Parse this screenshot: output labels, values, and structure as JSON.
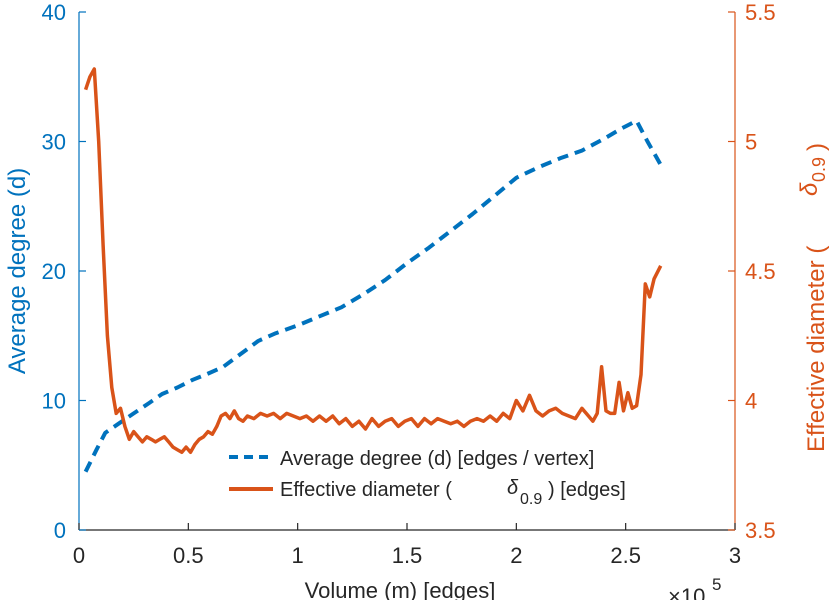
{
  "chart_data": {
    "type": "line",
    "xlabel": "Volume (m) [edges]",
    "x_exponent_label": "×10",
    "x_exponent_value": "5",
    "xlim": [
      0,
      3
    ],
    "xticks": [
      0,
      0.5,
      1,
      1.5,
      2,
      2.5,
      3
    ],
    "xtick_labels": [
      "0",
      "0.5",
      "1",
      "1.5",
      "2",
      "2.5",
      "3"
    ],
    "left_axis": {
      "ylabel": "Average degree (d)",
      "ylim": [
        0,
        40
      ],
      "ticks": [
        0,
        10,
        20,
        30,
        40
      ],
      "tick_labels": [
        "0",
        "10",
        "20",
        "30",
        "40"
      ],
      "color": "#0072BD"
    },
    "right_axis": {
      "ylabel_prefix": "Effective diameter (",
      "ylabel_symbol": "δ",
      "ylabel_sub": "0.9",
      "ylabel_suffix": ")",
      "ylim": [
        3.5,
        5.5
      ],
      "ticks": [
        3.5,
        4,
        4.5,
        5,
        5.5
      ],
      "tick_labels": [
        "3.5",
        "4",
        "4.5",
        "5",
        "5.5"
      ],
      "color": "#D95319"
    },
    "legend": {
      "position": "bottom-right",
      "items": [
        {
          "label": "Average degree (d) [edges / vertex]"
        },
        {
          "label_prefix": "Effective diameter (",
          "symbol": "δ",
          "sub": "0.9",
          "label_suffix": ") [edges]"
        }
      ]
    },
    "series": [
      {
        "name": "Average degree (d) [edges / vertex]",
        "axis": "left",
        "style": "dashed",
        "color": "#0072BD",
        "x": [
          0.03,
          0.08,
          0.12,
          0.18,
          0.25,
          0.32,
          0.38,
          0.45,
          0.52,
          0.58,
          0.66,
          0.74,
          0.82,
          0.9,
          1.0,
          1.1,
          1.2,
          1.3,
          1.4,
          1.5,
          1.6,
          1.7,
          1.8,
          1.9,
          2.0,
          2.1,
          2.2,
          2.3,
          2.4,
          2.48,
          2.55,
          2.6,
          2.66
        ],
        "y": [
          4.5,
          6.2,
          7.5,
          8.2,
          9.0,
          9.8,
          10.5,
          11.0,
          11.6,
          12.0,
          12.6,
          13.6,
          14.6,
          15.2,
          15.8,
          16.5,
          17.2,
          18.2,
          19.3,
          20.6,
          21.8,
          23.1,
          24.4,
          25.8,
          27.2,
          28.0,
          28.7,
          29.3,
          30.2,
          31.0,
          31.6,
          30.0,
          28.2
        ]
      },
      {
        "name": "Effective diameter (δ 0.9) [edges]",
        "axis": "right",
        "style": "solid",
        "color": "#D95319",
        "x": [
          0.03,
          0.05,
          0.07,
          0.09,
          0.11,
          0.13,
          0.15,
          0.17,
          0.19,
          0.21,
          0.23,
          0.25,
          0.27,
          0.29,
          0.31,
          0.33,
          0.35,
          0.37,
          0.39,
          0.41,
          0.43,
          0.45,
          0.47,
          0.49,
          0.51,
          0.53,
          0.55,
          0.57,
          0.59,
          0.61,
          0.63,
          0.65,
          0.67,
          0.69,
          0.71,
          0.73,
          0.75,
          0.77,
          0.8,
          0.83,
          0.86,
          0.89,
          0.92,
          0.95,
          0.98,
          1.01,
          1.04,
          1.07,
          1.1,
          1.13,
          1.16,
          1.19,
          1.22,
          1.25,
          1.28,
          1.31,
          1.34,
          1.37,
          1.4,
          1.43,
          1.46,
          1.49,
          1.52,
          1.55,
          1.58,
          1.61,
          1.64,
          1.67,
          1.7,
          1.73,
          1.76,
          1.79,
          1.82,
          1.85,
          1.88,
          1.91,
          1.94,
          1.97,
          2.0,
          2.03,
          2.06,
          2.09,
          2.12,
          2.15,
          2.18,
          2.21,
          2.24,
          2.27,
          2.3,
          2.33,
          2.35,
          2.37,
          2.39,
          2.41,
          2.43,
          2.45,
          2.47,
          2.49,
          2.51,
          2.53,
          2.55,
          2.57,
          2.59,
          2.61,
          2.63,
          2.66
        ],
        "y": [
          5.2,
          5.25,
          5.28,
          5.0,
          4.6,
          4.25,
          4.05,
          3.95,
          3.97,
          3.9,
          3.85,
          3.88,
          3.86,
          3.84,
          3.86,
          3.85,
          3.84,
          3.85,
          3.86,
          3.84,
          3.82,
          3.81,
          3.8,
          3.82,
          3.8,
          3.83,
          3.85,
          3.86,
          3.88,
          3.87,
          3.9,
          3.94,
          3.95,
          3.93,
          3.96,
          3.93,
          3.92,
          3.94,
          3.93,
          3.95,
          3.94,
          3.95,
          3.93,
          3.95,
          3.94,
          3.93,
          3.94,
          3.92,
          3.94,
          3.92,
          3.94,
          3.91,
          3.93,
          3.9,
          3.92,
          3.89,
          3.93,
          3.9,
          3.92,
          3.93,
          3.9,
          3.92,
          3.93,
          3.9,
          3.93,
          3.91,
          3.93,
          3.92,
          3.91,
          3.92,
          3.9,
          3.92,
          3.93,
          3.92,
          3.94,
          3.92,
          3.95,
          3.93,
          4.0,
          3.96,
          4.02,
          3.96,
          3.94,
          3.96,
          3.97,
          3.95,
          3.94,
          3.93,
          3.97,
          3.94,
          3.92,
          3.95,
          4.13,
          3.96,
          3.95,
          3.95,
          4.07,
          3.96,
          4.03,
          3.97,
          3.98,
          4.1,
          4.45,
          4.4,
          4.47,
          4.52
        ]
      }
    ]
  }
}
